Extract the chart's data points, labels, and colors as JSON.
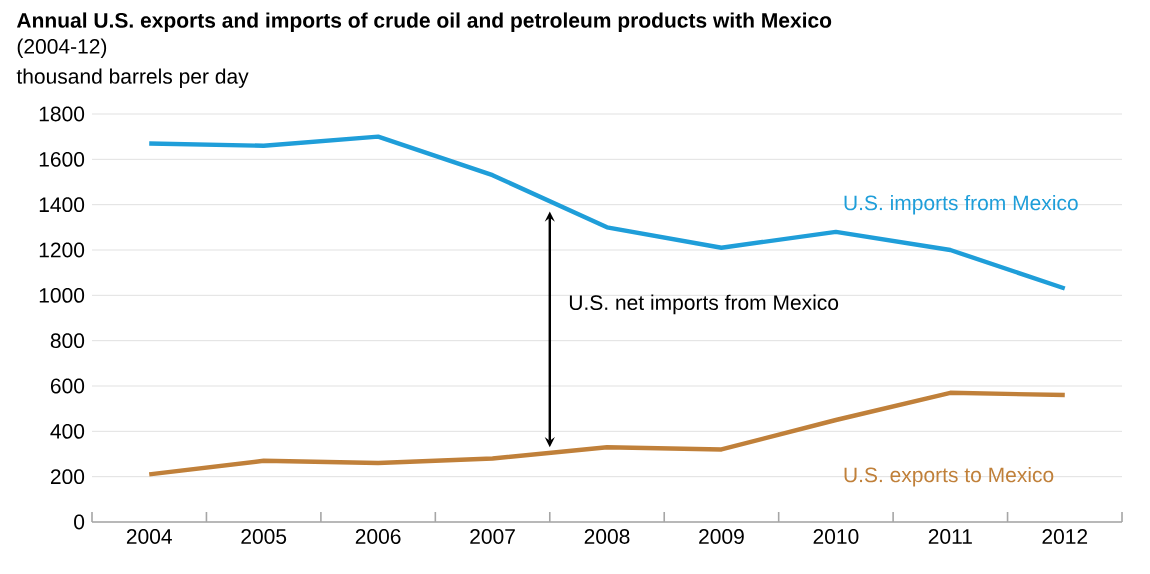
{
  "chart_data": {
    "type": "line",
    "title": "Annual U.S. exports and imports of crude oil and petroleum products with Mexico",
    "subtitle": "(2004-12)",
    "ylabel": "thousand barrels per day",
    "categories": [
      "2004",
      "2005",
      "2006",
      "2007",
      "2008",
      "2009",
      "2010",
      "2011",
      "2012"
    ],
    "series": [
      {
        "name": "U.S. imports from Mexico",
        "color": "#1f9ed9",
        "values": [
          1670,
          1660,
          1700,
          1530,
          1300,
          1210,
          1280,
          1200,
          1030
        ]
      },
      {
        "name": "U.S. exports to Mexico",
        "color": "#c0803a",
        "values": [
          210,
          270,
          260,
          280,
          330,
          320,
          450,
          570,
          560
        ]
      }
    ],
    "ylim": [
      0,
      1800
    ],
    "yticks": [
      0,
      200,
      400,
      600,
      800,
      1000,
      1200,
      1400,
      1600,
      1800
    ],
    "grid": "y",
    "marker": "none",
    "line_style": "solid",
    "annotations": [
      "U.S. net imports from Mexico"
    ]
  }
}
